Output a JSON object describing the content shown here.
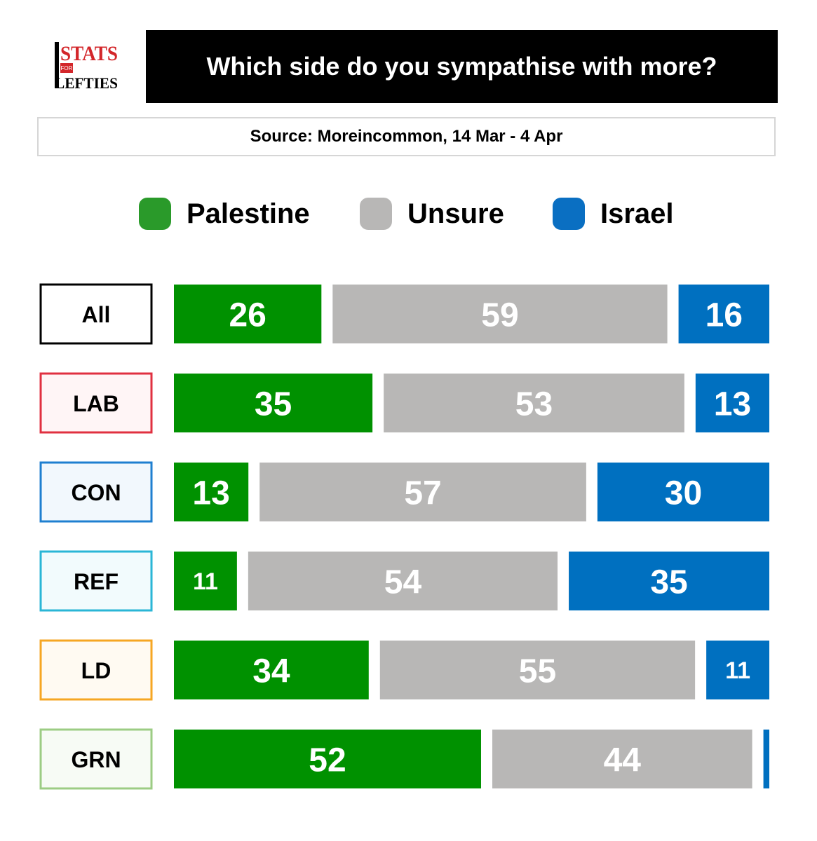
{
  "header": {
    "logo_top": "STATS",
    "logo_small": "FOR",
    "logo_bottom": "LEFTIES",
    "title": "Which side do you sympathise with more?",
    "source": "Source: Moreincommon, 14 Mar - 4 Apr"
  },
  "legend": [
    {
      "label": "Palestine",
      "color": "#2a9a2a"
    },
    {
      "label": "Unsure",
      "color": "#b8b7b6"
    },
    {
      "label": "Israel",
      "color": "#0a6fc2"
    }
  ],
  "chart_data": {
    "type": "bar",
    "stacked": true,
    "orientation": "horizontal",
    "title": "Which side do you sympathise with more?",
    "categories": [
      "All",
      "LAB",
      "CON",
      "REF",
      "LD",
      "GRN"
    ],
    "category_colors": {
      "All": {
        "border": "#000000",
        "fill": "#ffffff"
      },
      "LAB": {
        "border": "#e03040",
        "fill": "#fff5f6"
      },
      "CON": {
        "border": "#1f7fd0",
        "fill": "#f2f8fd"
      },
      "REF": {
        "border": "#2ab6d6",
        "fill": "#f2fbfd"
      },
      "LD": {
        "border": "#f6a623",
        "fill": "#fffaf2"
      },
      "GRN": {
        "border": "#9ccc84",
        "fill": "#f7fbf5"
      }
    },
    "series": [
      {
        "name": "Palestine",
        "color": "#009100",
        "values": [
          26,
          35,
          13,
          11,
          34,
          52
        ]
      },
      {
        "name": "Unsure",
        "color": "#b8b7b6",
        "values": [
          59,
          53,
          57,
          54,
          55,
          44
        ]
      },
      {
        "name": "Israel",
        "color": "#0070c0",
        "values": [
          16,
          13,
          30,
          35,
          11,
          1
        ]
      }
    ],
    "data_labels": [
      [
        "26",
        "59",
        "16"
      ],
      [
        "35",
        "53",
        "13"
      ],
      [
        "13",
        "57",
        "30"
      ],
      [
        "11",
        "54",
        "35"
      ],
      [
        "34",
        "55",
        "11"
      ],
      [
        "52",
        "44",
        ""
      ]
    ],
    "legend_position": "top",
    "grid": false
  }
}
